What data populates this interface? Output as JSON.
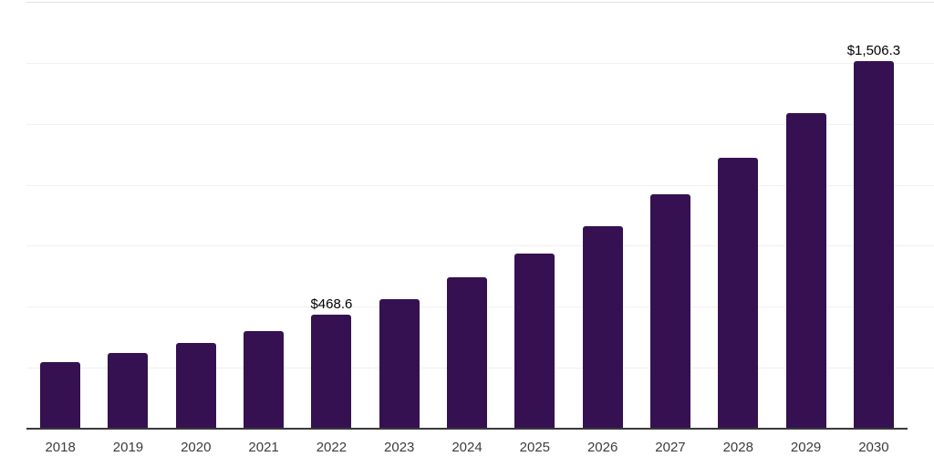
{
  "chart_data": {
    "type": "bar",
    "title": "",
    "xlabel": "",
    "ylabel": "",
    "categories": [
      "2018",
      "2019",
      "2020",
      "2021",
      "2022",
      "2023",
      "2024",
      "2025",
      "2026",
      "2027",
      "2028",
      "2029",
      "2030"
    ],
    "values": [
      272,
      309,
      353,
      402,
      468.6,
      532,
      621,
      718,
      829,
      960,
      1112,
      1294,
      1506.3
    ],
    "data_labels": {
      "2022": "$468.6",
      "2030": "$1,506.3"
    },
    "ylim": [
      0,
      1750
    ],
    "grid_step": 250,
    "grid": true,
    "legend": false,
    "colors": {
      "bar": "#351151",
      "gridline": "#f1f1f1",
      "top_gridline": "#e0e0e0",
      "axis": "#3a3a3a",
      "tick_text": "#3c3c3c",
      "data_label_text": "#000000",
      "background": "#ffffff"
    }
  }
}
